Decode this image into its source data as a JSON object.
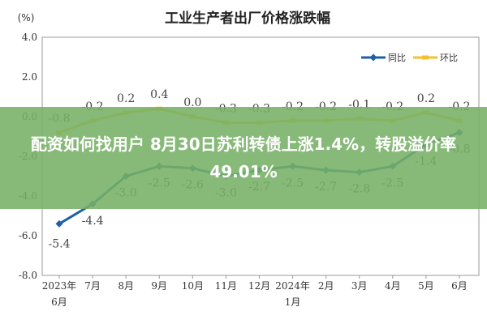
{
  "banner": {
    "headline": "配资如何找用户 8月30日苏利转债上涨1.4%，转股溢价率49.01%"
  },
  "chart_data": {
    "type": "line",
    "title": "工业生产者出厂价格涨跌幅",
    "ylabel": "(%)",
    "ylim": [
      -8.0,
      4.0
    ],
    "yticks": [
      "4.0",
      "2.0",
      "0.0",
      "-2.0",
      "-4.0",
      "-6.0",
      "-8.0"
    ],
    "ytick_values": [
      4,
      2,
      0,
      -2,
      -4,
      -6,
      -8
    ],
    "categories": [
      "2023年6月",
      "7月",
      "8月",
      "9月",
      "10月",
      "11月",
      "12月",
      "2024年1月",
      "2月",
      "3月",
      "4月",
      "5月",
      "6月"
    ],
    "category_lines": [
      [
        "2023年",
        "6月"
      ],
      [
        "7月"
      ],
      [
        "8月"
      ],
      [
        "9月"
      ],
      [
        "10月"
      ],
      [
        "11月"
      ],
      [
        "12月"
      ],
      [
        "2024年",
        "1月"
      ],
      [
        "2月"
      ],
      [
        "3月"
      ],
      [
        "4月"
      ],
      [
        "5月"
      ],
      [
        "6月"
      ]
    ],
    "series": [
      {
        "name": "同比",
        "color": "#1f5fa8",
        "values": [
          -5.4,
          -4.4,
          -3.0,
          -2.5,
          -2.6,
          -3.0,
          -2.7,
          -2.5,
          -2.7,
          -2.8,
          -2.5,
          -1.4,
          -0.8
        ],
        "labels": [
          "-5.4",
          "-4.4",
          "-3.0",
          "-2.5",
          "-2.6",
          "-3.0",
          "-2.7",
          "-2.5",
          "-2.7",
          "-2.8",
          "-2.5",
          "-1.4",
          "-0.8"
        ]
      },
      {
        "name": "环比",
        "color": "#f3c12e",
        "values": [
          -0.8,
          -0.2,
          0.2,
          0.4,
          0.0,
          -0.3,
          -0.3,
          -0.2,
          -0.2,
          -0.1,
          -0.2,
          0.2,
          -0.2
        ],
        "labels": [
          "-0.8",
          "-0.2",
          "0.2",
          "0.4",
          "0.0",
          "-0.3",
          "-0.3",
          "-0.2",
          "-0.2",
          "-0.1",
          "-0.2",
          "0.2",
          "-0.2"
        ]
      }
    ],
    "legend_position": "top-right",
    "grid": false
  }
}
